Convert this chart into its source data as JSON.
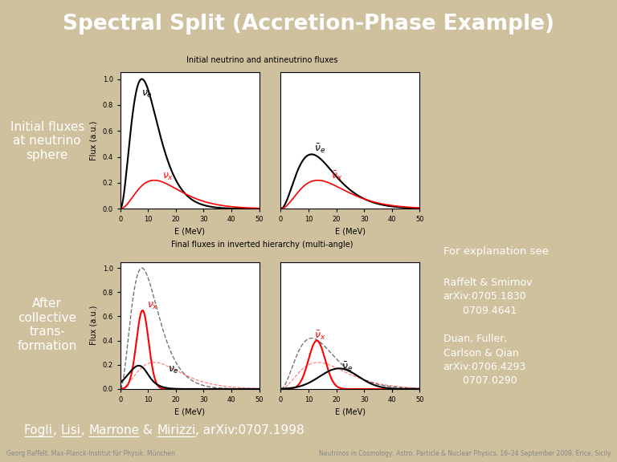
{
  "title": "Spectral Split (Accretion-Phase Example)",
  "title_bg": "#4a6e96",
  "title_color": "#ffffff",
  "title_fontsize": 19,
  "left_col_bg": "#4a6e96",
  "left_col_color": "#ffffff",
  "label_fontsize": 11,
  "left_label1": "Initial fluxes\nat neutrino\nsphere",
  "left_label2": "After\ncollective\ntrans-\nformation",
  "right_col_bg": "#5c5c5c",
  "right_col_color": "#ffffff",
  "right_text_title": "For explanation see",
  "right_text_body": "Raffelt & Smirnov\narXiv:0705.1830\n      0709.4641\n\nDuan, Fuller,\nCarlson & Qian\narXiv:0706.4293\n      0707.0290",
  "main_bg": "#cfc09e",
  "plot_title1": "Initial neutrino and antineutrino fluxes",
  "plot_title2": "Final fluxes in inverted hierarchy (multi-angle)",
  "bottom_bar_bg": "#3a3a3a",
  "bottom_citation_color": "#ffffff",
  "footer_bg": "#111111",
  "footer_left": "Georg Raffelt, Max-Planck-Institut für Physik, München",
  "footer_right": "Neutrinos in Cosmology, Astro, Particle & Nuclear Physics, 16–24 September 2009, Erice, Sicily",
  "footer_color": "#888888",
  "footer_fontsize": 5.5
}
